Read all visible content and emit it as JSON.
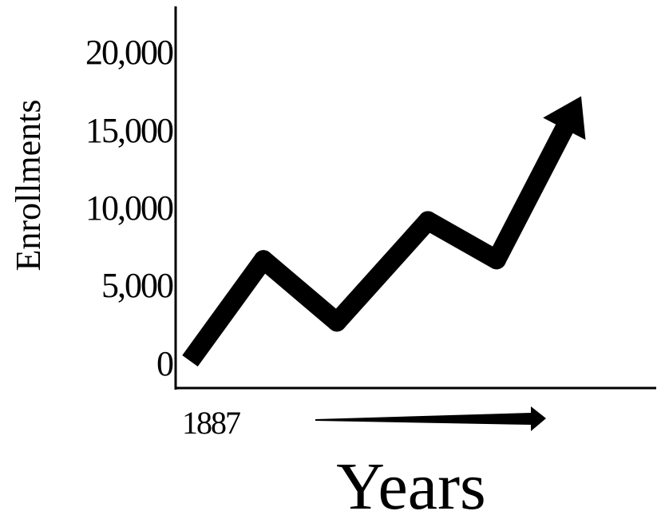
{
  "chart_data": {
    "type": "line",
    "title": "",
    "ylabel": "Enrollments",
    "xlabel": "Years",
    "x_tick_labels": [
      "1887"
    ],
    "y_tick_labels": [
      "20,000",
      "15,000",
      "10,000",
      "5,000",
      "0"
    ],
    "ylim": [
      0,
      20000
    ],
    "grid": false,
    "series": [
      {
        "values": [
          0,
          6500,
          2500,
          9000,
          6500,
          17000
        ]
      }
    ],
    "colors": {
      "line": "#000000",
      "axis": "#000000"
    }
  }
}
